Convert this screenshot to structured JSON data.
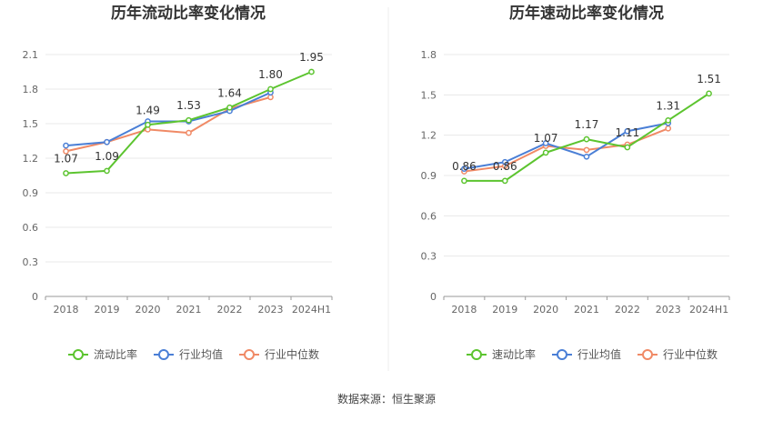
{
  "source_text": "数据来源：恒生聚源",
  "chart_data": [
    {
      "type": "line",
      "title": "历年流动比率变化情况",
      "categories": [
        "2018",
        "2019",
        "2020",
        "2021",
        "2022",
        "2023",
        "2024H1"
      ],
      "ylim": [
        0,
        2.1
      ],
      "yticks": [
        "0",
        "0.3",
        "0.6",
        "0.9",
        "1.2",
        "1.5",
        "1.8",
        "2.1"
      ],
      "grid": true,
      "legend": "bottom",
      "series": [
        {
          "name": "流动比率",
          "color": "#5cc42f",
          "values": [
            1.07,
            1.09,
            1.49,
            1.53,
            1.64,
            1.8,
            1.95
          ],
          "labels": [
            "1.07",
            "1.09",
            "1.49",
            "1.53",
            "1.64",
            "1.80",
            "1.95"
          ]
        },
        {
          "name": "行业均值",
          "color": "#4a7fd6",
          "values": [
            1.31,
            1.34,
            1.52,
            1.52,
            1.61,
            1.77,
            null
          ]
        },
        {
          "name": "行业中位数",
          "color": "#f08a66",
          "values": [
            1.26,
            1.34,
            1.45,
            1.42,
            1.63,
            1.73,
            null
          ]
        }
      ]
    },
    {
      "type": "line",
      "title": "历年速动比率变化情况",
      "categories": [
        "2018",
        "2019",
        "2020",
        "2021",
        "2022",
        "2023",
        "2024H1"
      ],
      "ylim": [
        0,
        1.8
      ],
      "yticks": [
        "0",
        "0.3",
        "0.6",
        "0.9",
        "1.2",
        "1.5",
        "1.8"
      ],
      "grid": true,
      "legend": "bottom",
      "series": [
        {
          "name": "速动比率",
          "color": "#5cc42f",
          "values": [
            0.86,
            0.86,
            1.07,
            1.17,
            1.11,
            1.31,
            1.51
          ],
          "labels": [
            "0.86",
            "0.86",
            "1.07",
            "1.17",
            "1.11",
            "1.31",
            "1.51"
          ]
        },
        {
          "name": "行业均值",
          "color": "#4a7fd6",
          "values": [
            0.95,
            1.0,
            1.14,
            1.04,
            1.23,
            1.29,
            null
          ]
        },
        {
          "name": "行业中位数",
          "color": "#f08a66",
          "values": [
            0.93,
            0.97,
            1.12,
            1.09,
            1.13,
            1.25,
            null
          ]
        }
      ]
    }
  ]
}
